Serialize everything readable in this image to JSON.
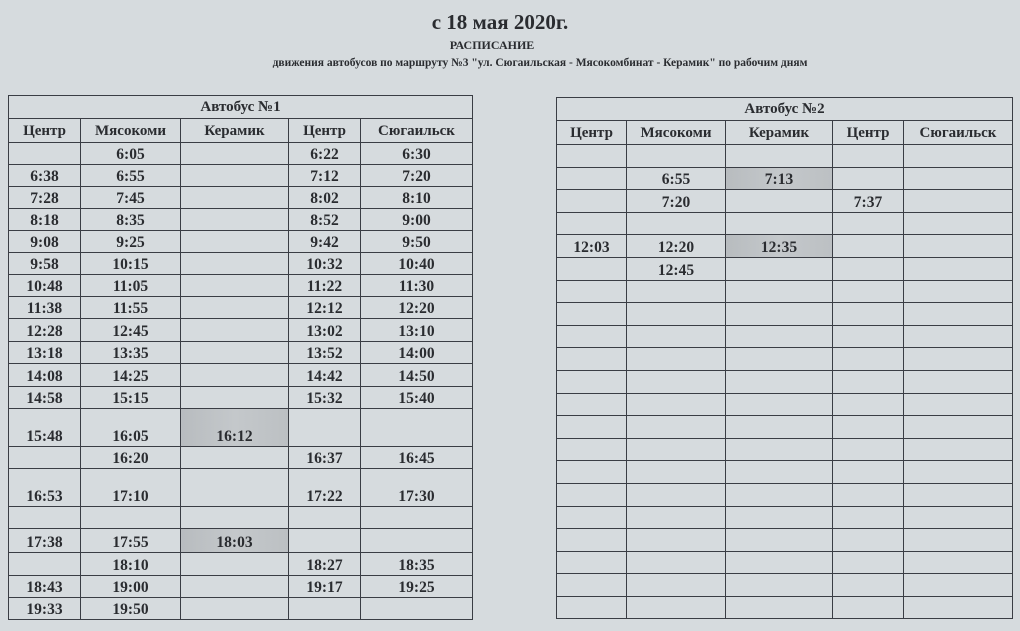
{
  "header": {
    "date": "с 18 мая 2020г.",
    "title": "РАСПИСАНИЕ",
    "subtitle": "движения автобусов по маршруту №3 \"ул. Сюгаильская - Мясокомбинат - Керамик\" по рабочим дням"
  },
  "bus1": {
    "title": "Автобус №1",
    "columns": [
      "Центр",
      "Мясокоми",
      "Керамик",
      "Центр",
      "Сюгаильск"
    ],
    "rows": [
      [
        "",
        "6:05",
        "",
        "6:22",
        "6:30"
      ],
      [
        "6:38",
        "6:55",
        "",
        "7:12",
        "7:20"
      ],
      [
        "7:28",
        "7:45",
        "",
        "8:02",
        "8:10"
      ],
      [
        "8:18",
        "8:35",
        "",
        "8:52",
        "9:00"
      ],
      [
        "9:08",
        "9:25",
        "",
        "9:42",
        "9:50"
      ],
      [
        "9:58",
        "10:15",
        "",
        "10:32",
        "10:40"
      ],
      [
        "10:48",
        "11:05",
        "",
        "11:22",
        "11:30"
      ],
      [
        "11:38",
        "11:55",
        "",
        "12:12",
        "12:20"
      ],
      [
        "12:28",
        "12:45",
        "",
        "13:02",
        "13:10"
      ],
      [
        "13:18",
        "13:35",
        "",
        "13:52",
        "14:00"
      ],
      [
        "14:08",
        "14:25",
        "",
        "14:42",
        "14:50"
      ],
      [
        "14:58",
        "15:15",
        "",
        "15:32",
        "15:40"
      ],
      [
        "15:48",
        "16:05",
        "16:12",
        "",
        ""
      ],
      [
        "",
        "16:20",
        "",
        "16:37",
        "16:45"
      ],
      [
        "16:53",
        "17:10",
        "",
        "17:22",
        "17:30"
      ],
      [
        "",
        "",
        "",
        "",
        ""
      ],
      [
        "17:38",
        "17:55",
        "18:03",
        "",
        ""
      ],
      [
        "",
        "18:10",
        "",
        "18:27",
        "18:35"
      ],
      [
        "18:43",
        "19:00",
        "",
        "19:17",
        "19:25"
      ],
      [
        "19:33",
        "19:50",
        "",
        "",
        ""
      ]
    ],
    "highlighted": [
      "16:12",
      "18:03"
    ]
  },
  "bus2": {
    "title": "Автобус №2",
    "columns": [
      "Центр",
      "Мясокоми",
      "Керамик",
      "Центр",
      "Сюгаильск"
    ],
    "rows": [
      [
        "",
        "",
        "",
        "",
        ""
      ],
      [
        "",
        "6:55",
        "7:13",
        "",
        ""
      ],
      [
        "",
        "7:20",
        "",
        "7:37",
        ""
      ],
      [
        "",
        "",
        "",
        "",
        ""
      ],
      [
        "12:03",
        "12:20",
        "12:35",
        "",
        ""
      ],
      [
        "",
        "12:45",
        "",
        "",
        ""
      ],
      [
        "",
        "",
        "",
        "",
        ""
      ],
      [
        "",
        "",
        "",
        "",
        ""
      ],
      [
        "",
        "",
        "",
        "",
        ""
      ],
      [
        "",
        "",
        "",
        "",
        ""
      ],
      [
        "",
        "",
        "",
        "",
        ""
      ],
      [
        "",
        "",
        "",
        "",
        ""
      ],
      [
        "",
        "",
        "",
        "",
        ""
      ],
      [
        "",
        "",
        "",
        "",
        ""
      ],
      [
        "",
        "",
        "",
        "",
        ""
      ],
      [
        "",
        "",
        "",
        "",
        ""
      ],
      [
        "",
        "",
        "",
        "",
        ""
      ],
      [
        "",
        "",
        "",
        "",
        ""
      ],
      [
        "",
        "",
        "",
        "",
        ""
      ],
      [
        "",
        "",
        "",
        "",
        ""
      ],
      [
        "",
        "",
        "",
        "",
        ""
      ]
    ],
    "highlighted": [
      "7:13",
      "12:35"
    ]
  },
  "colors": {
    "paper": "#d6dbde",
    "highlight": "#bcc0c3",
    "ink": "#2a2c30"
  }
}
